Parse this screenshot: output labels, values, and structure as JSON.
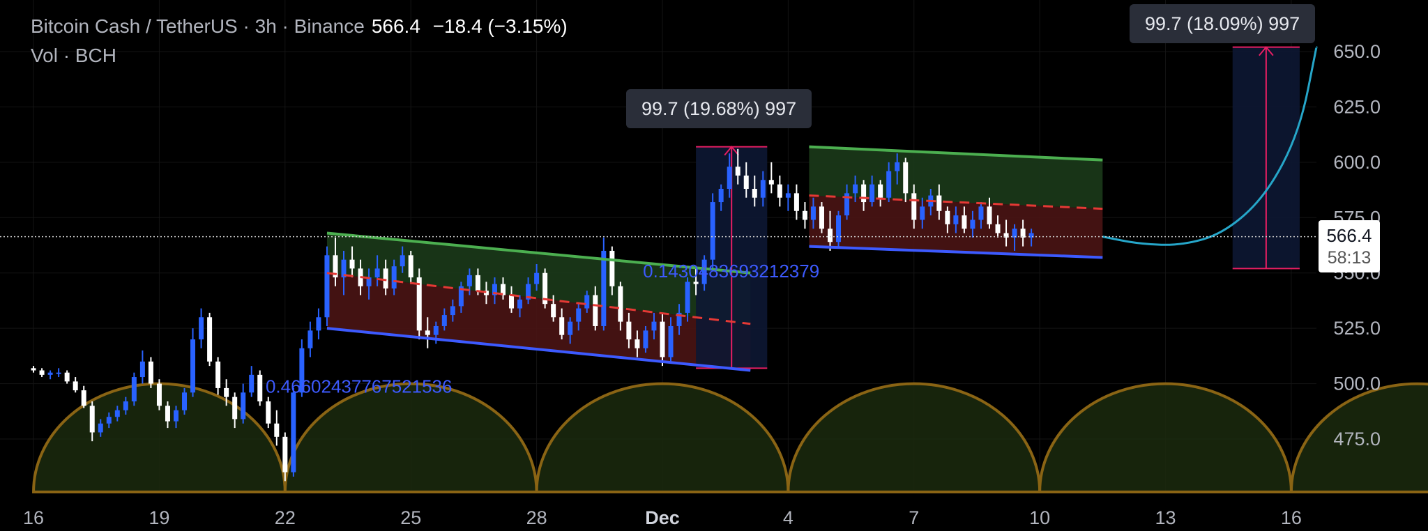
{
  "header": {
    "symbol": "Bitcoin Cash / TetherUS · 3h · Binance",
    "last": "566.4",
    "change": "−18.4 (−3.15%)",
    "volume_label": "Vol · BCH"
  },
  "price_tag": {
    "price": "566.4",
    "countdown": "58:13"
  },
  "tooltips": [
    {
      "text": "99.7 (19.68%) 997"
    },
    {
      "text": "99.7 (18.09%) 997"
    }
  ],
  "colors": {
    "up": "#2962ff",
    "down": "#ffffff",
    "channel_top": "#4caf50",
    "channel_bottom": "#3d5afe",
    "zone_green": "#1b3a1a",
    "zone_red": "#4a1414",
    "midline": "#e53935",
    "arc": "#8a6414",
    "measure": "#e91e63",
    "curve": "#26a6c9"
  },
  "chart_data": {
    "type": "candlestick",
    "y_ticks": [
      "650.0",
      "625.0",
      "600.0",
      "575.0",
      "550.0",
      "525.0",
      "500.0",
      "475.0"
    ],
    "x_ticks": [
      "16",
      "19",
      "22",
      "25",
      "28",
      "Dec",
      "4",
      "7",
      "10",
      "13",
      "16"
    ],
    "ylim": [
      451,
      668
    ],
    "xlim": [
      15.6,
      46.6
    ],
    "last_price": 566.4,
    "channel_labels": [
      "0.46602437767521536",
      "0.1430483693212379"
    ],
    "channels": [
      {
        "x": [
          23,
          33.1
        ],
        "top": [
          568,
          550
        ],
        "bottom": [
          525,
          506
        ],
        "mid": [
          550,
          527
        ]
      },
      {
        "x": [
          34.5,
          41.5
        ],
        "top": [
          607,
          601
        ],
        "bottom": [
          562,
          557
        ],
        "mid": [
          585,
          579
        ]
      }
    ],
    "measures": [
      {
        "x": [
          31.8,
          33.5
        ],
        "y": [
          507,
          607
        ]
      },
      {
        "x": [
          44.6,
          46.2
        ],
        "y": [
          552,
          652
        ]
      }
    ],
    "projection": [
      [
        41.5,
        566.4
      ],
      [
        42.4,
        563
      ],
      [
        43.4,
        562.5
      ],
      [
        44.4,
        568
      ],
      [
        45.4,
        585
      ],
      [
        46.2,
        614
      ],
      [
        46.6,
        652
      ]
    ],
    "arcs": [
      {
        "center": 19,
        "top": 500
      },
      {
        "center": 25,
        "top": 500
      },
      {
        "center": 31,
        "top": 500
      },
      {
        "center": 37,
        "top": 500
      },
      {
        "center": 43,
        "top": 500
      },
      {
        "center": 49,
        "top": 500
      }
    ],
    "candles": [
      [
        16.0,
        507,
        508,
        505,
        506
      ],
      [
        16.2,
        506,
        507,
        503,
        504
      ],
      [
        16.4,
        504,
        506,
        502,
        505
      ],
      [
        16.6,
        505,
        507,
        503,
        505
      ],
      [
        16.8,
        505,
        506,
        500,
        501
      ],
      [
        17.0,
        501,
        503,
        496,
        497
      ],
      [
        17.2,
        497,
        499,
        489,
        490
      ],
      [
        17.4,
        490,
        492,
        474,
        478
      ],
      [
        17.6,
        478,
        484,
        476,
        482
      ],
      [
        17.8,
        482,
        487,
        480,
        485
      ],
      [
        18.0,
        485,
        490,
        483,
        488
      ],
      [
        18.2,
        488,
        494,
        486,
        492
      ],
      [
        18.4,
        492,
        505,
        490,
        503
      ],
      [
        18.6,
        503,
        515,
        500,
        510
      ],
      [
        18.8,
        510,
        512,
        498,
        500
      ],
      [
        19.0,
        500,
        502,
        488,
        490
      ],
      [
        19.2,
        490,
        492,
        480,
        483
      ],
      [
        19.4,
        483,
        490,
        480,
        488
      ],
      [
        19.6,
        488,
        498,
        486,
        496
      ],
      [
        19.8,
        496,
        525,
        494,
        520
      ],
      [
        20.0,
        520,
        534,
        516,
        530
      ],
      [
        20.2,
        530,
        532,
        508,
        510
      ],
      [
        20.4,
        510,
        512,
        495,
        498
      ],
      [
        20.6,
        498,
        502,
        490,
        494
      ],
      [
        20.8,
        494,
        496,
        480,
        484
      ],
      [
        21.0,
        484,
        500,
        482,
        496
      ],
      [
        21.2,
        496,
        508,
        494,
        504
      ],
      [
        21.4,
        504,
        506,
        490,
        492
      ],
      [
        21.6,
        492,
        494,
        480,
        482
      ],
      [
        21.8,
        482,
        488,
        472,
        476
      ],
      [
        22.0,
        476,
        478,
        456,
        460
      ],
      [
        22.2,
        460,
        498,
        458,
        496
      ],
      [
        22.4,
        496,
        520,
        494,
        516
      ],
      [
        22.6,
        516,
        528,
        512,
        524
      ],
      [
        22.8,
        524,
        534,
        520,
        530
      ],
      [
        23.0,
        530,
        562,
        526,
        558
      ],
      [
        23.2,
        558,
        566,
        544,
        548
      ],
      [
        23.4,
        548,
        560,
        540,
        556
      ],
      [
        23.6,
        556,
        562,
        548,
        552
      ],
      [
        23.8,
        552,
        556,
        540,
        544
      ],
      [
        24.0,
        544,
        552,
        538,
        548
      ],
      [
        24.2,
        548,
        558,
        544,
        552
      ],
      [
        24.4,
        552,
        556,
        540,
        543
      ],
      [
        24.6,
        543,
        556,
        540,
        553
      ],
      [
        24.8,
        553,
        562,
        550,
        558
      ],
      [
        25.0,
        558,
        560,
        545,
        548
      ],
      [
        25.2,
        548,
        552,
        520,
        524
      ],
      [
        25.4,
        524,
        530,
        516,
        522
      ],
      [
        25.6,
        522,
        528,
        518,
        526
      ],
      [
        25.8,
        526,
        534,
        524,
        531
      ],
      [
        26.0,
        531,
        538,
        528,
        535
      ],
      [
        26.2,
        535,
        546,
        532,
        544
      ],
      [
        26.4,
        544,
        552,
        540,
        549
      ],
      [
        26.6,
        549,
        552,
        540,
        542
      ],
      [
        26.8,
        542,
        546,
        536,
        540
      ],
      [
        27.0,
        540,
        548,
        536,
        545
      ],
      [
        27.2,
        545,
        548,
        538,
        540
      ],
      [
        27.4,
        540,
        544,
        532,
        534
      ],
      [
        27.6,
        534,
        540,
        530,
        538
      ],
      [
        27.8,
        538,
        548,
        536,
        545
      ],
      [
        28.0,
        545,
        554,
        542,
        550
      ],
      [
        28.2,
        550,
        552,
        534,
        536
      ],
      [
        28.4,
        536,
        540,
        528,
        530
      ],
      [
        28.6,
        530,
        534,
        520,
        522
      ],
      [
        28.8,
        522,
        530,
        518,
        528
      ],
      [
        29.0,
        528,
        536,
        524,
        534
      ],
      [
        29.2,
        534,
        542,
        532,
        540
      ],
      [
        29.4,
        540,
        544,
        524,
        526
      ],
      [
        29.6,
        526,
        566,
        524,
        560
      ],
      [
        29.8,
        560,
        562,
        540,
        544
      ],
      [
        30.0,
        544,
        546,
        524,
        528
      ],
      [
        30.2,
        528,
        532,
        516,
        520
      ],
      [
        30.4,
        520,
        524,
        512,
        516
      ],
      [
        30.6,
        516,
        526,
        514,
        524
      ],
      [
        30.8,
        524,
        532,
        520,
        528
      ],
      [
        31.0,
        528,
        532,
        508,
        512
      ],
      [
        31.2,
        512,
        530,
        510,
        526
      ],
      [
        31.4,
        526,
        536,
        522,
        532
      ],
      [
        31.6,
        532,
        548,
        528,
        546
      ],
      [
        31.8,
        546,
        552,
        540,
        545
      ],
      [
        32.0,
        545,
        558,
        542,
        556
      ],
      [
        32.2,
        556,
        586,
        552,
        582
      ],
      [
        32.4,
        582,
        590,
        578,
        588
      ],
      [
        32.6,
        588,
        604,
        584,
        598
      ],
      [
        32.8,
        598,
        606,
        590,
        594
      ],
      [
        33.0,
        594,
        600,
        584,
        588
      ],
      [
        33.2,
        588,
        594,
        580,
        584
      ],
      [
        33.4,
        584,
        596,
        580,
        592
      ],
      [
        33.6,
        592,
        600,
        586,
        590
      ],
      [
        33.8,
        590,
        594,
        580,
        584
      ],
      [
        34.0,
        584,
        590,
        578,
        586
      ],
      [
        34.2,
        586,
        590,
        574,
        578
      ],
      [
        34.4,
        578,
        582,
        570,
        574
      ],
      [
        34.6,
        574,
        584,
        570,
        580
      ],
      [
        34.8,
        580,
        582,
        568,
        570
      ],
      [
        35.0,
        570,
        578,
        560,
        564
      ],
      [
        35.2,
        564,
        578,
        562,
        576
      ],
      [
        35.4,
        576,
        590,
        574,
        586
      ],
      [
        35.6,
        586,
        594,
        582,
        590
      ],
      [
        35.8,
        590,
        592,
        578,
        582
      ],
      [
        36.0,
        582,
        594,
        580,
        590
      ],
      [
        36.2,
        590,
        592,
        580,
        584
      ],
      [
        36.4,
        584,
        600,
        582,
        596
      ],
      [
        36.6,
        596,
        604,
        590,
        600
      ],
      [
        36.8,
        600,
        602,
        582,
        586
      ],
      [
        37.0,
        586,
        590,
        570,
        574
      ],
      [
        37.2,
        574,
        584,
        570,
        580
      ],
      [
        37.4,
        580,
        588,
        576,
        585
      ],
      [
        37.6,
        585,
        590,
        574,
        578
      ],
      [
        37.8,
        578,
        580,
        568,
        572
      ],
      [
        38.0,
        572,
        580,
        568,
        576
      ],
      [
        38.2,
        576,
        580,
        568,
        570
      ],
      [
        38.4,
        570,
        578,
        566,
        574
      ],
      [
        38.6,
        574,
        582,
        570,
        580
      ],
      [
        38.8,
        580,
        584,
        570,
        572
      ],
      [
        39.0,
        572,
        576,
        566,
        568
      ],
      [
        39.2,
        568,
        574,
        562,
        566
      ],
      [
        39.4,
        566,
        572,
        560,
        570
      ],
      [
        39.6,
        570,
        574,
        562,
        566
      ],
      [
        39.8,
        566,
        570,
        562,
        568
      ]
    ]
  }
}
